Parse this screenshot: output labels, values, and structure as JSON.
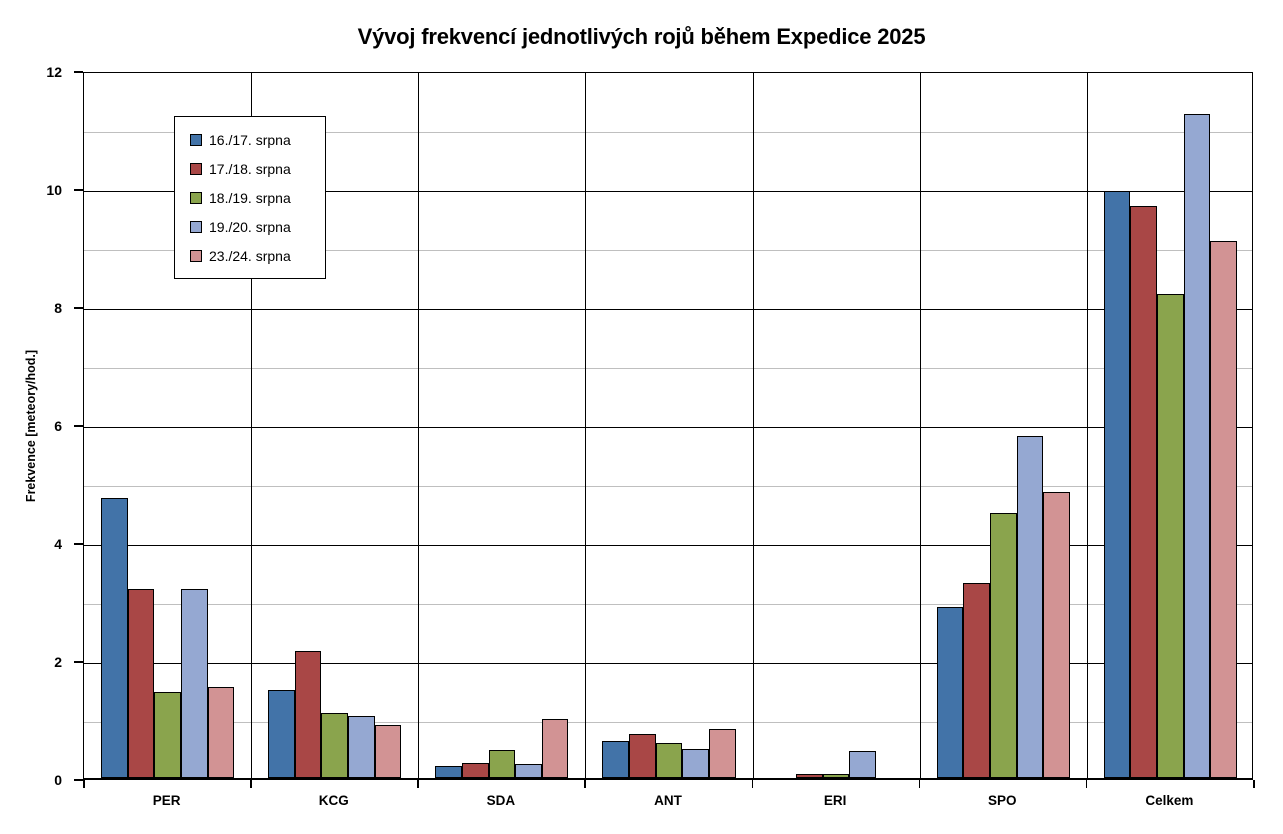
{
  "chart_data": {
    "type": "bar",
    "title": "Vývoj frekvencí jednotlivých rojů během Expedice 2025",
    "xlabel": "",
    "ylabel": "Frekvence [meteory/hod.]",
    "categories": [
      "PER",
      "KCG",
      "SDA",
      "ANT",
      "ERI",
      "SPO",
      "Celkem"
    ],
    "series": [
      {
        "name": "16./17. srpna",
        "color": "#4273A8",
        "values": [
          4.75,
          1.5,
          0.2,
          0.63,
          0,
          2.9,
          9.95
        ]
      },
      {
        "name": "17./18. srpna",
        "color": "#A94746",
        "values": [
          3.2,
          2.15,
          0.25,
          0.75,
          0.06,
          3.3,
          9.7
        ]
      },
      {
        "name": "18./19. srpna",
        "color": "#8AA44D",
        "values": [
          1.45,
          1.1,
          0.48,
          0.6,
          0.07,
          4.5,
          8.2
        ]
      },
      {
        "name": "19./20. srpna",
        "color": "#95A8D2",
        "values": [
          3.2,
          1.05,
          0.23,
          0.5,
          0.45,
          5.8,
          11.25
        ]
      },
      {
        "name": "23./24. srpna",
        "color": "#D29394",
        "values": [
          1.55,
          0.9,
          1.0,
          0.83,
          0,
          4.85,
          9.1
        ]
      }
    ],
    "ylim": [
      0,
      12
    ],
    "y_ticks": [
      0,
      2,
      4,
      6,
      8,
      10,
      12
    ],
    "y_major_step": 2,
    "y_minor_step": 1,
    "grid": {
      "major_color": "#000000",
      "minor_color": "#BFBFBF",
      "vertical_separators": true
    },
    "legend_position": "inside-top-left"
  }
}
